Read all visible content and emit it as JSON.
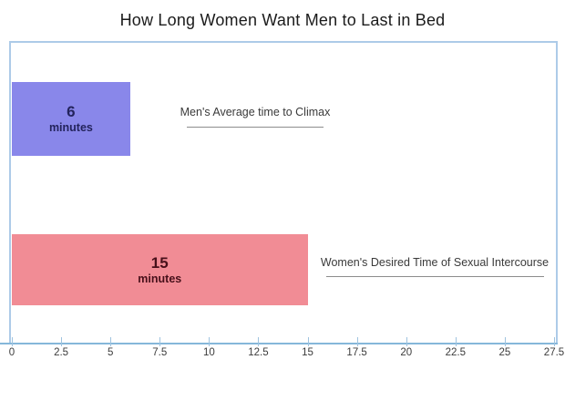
{
  "title": "How Long Women Want Men to Last in Bed",
  "colors": {
    "background": "#ffffff",
    "title_text": "#1b1b1b",
    "plot_border": "#adcbe8",
    "axis_line": "#85b7da",
    "tick_mark": "#9fc3df",
    "tick_label": "#3c3c3c",
    "annotation_text": "#3a3a3a",
    "annotation_underline": "#8c8c8c",
    "bar_men": "#8987ea",
    "bar_men_label": "#23235c",
    "bar_women": "#f18c95",
    "bar_women_label": "#47101a"
  },
  "chart_data": {
    "type": "bar",
    "orientation": "horizontal",
    "title": "How Long Women Want Men to Last in Bed",
    "xlabel": "",
    "ylabel": "",
    "xlim": [
      0,
      27.5
    ],
    "xticks": [
      0,
      2.5,
      5,
      7.5,
      10,
      12.5,
      15,
      17.5,
      20,
      22.5,
      25,
      27.5
    ],
    "xtick_labels": [
      "0",
      "2.5",
      "5",
      "7.5",
      "10",
      "12.5",
      "15",
      "17.5",
      "20",
      "22.5",
      "25",
      "27.5"
    ],
    "grid": false,
    "legend": false,
    "bars": [
      {
        "name": "men-average",
        "value": 6,
        "value_label": "6",
        "unit_label": "minutes",
        "annotation": "Men's Average time to Climax",
        "color": "#8987ea",
        "label_color": "#23235c"
      },
      {
        "name": "women-desired",
        "value": 15,
        "value_label": "15",
        "unit_label": "minutes",
        "annotation": "Women's Desired Time of Sexual Intercourse",
        "color": "#f18c95",
        "label_color": "#47101a"
      }
    ]
  }
}
